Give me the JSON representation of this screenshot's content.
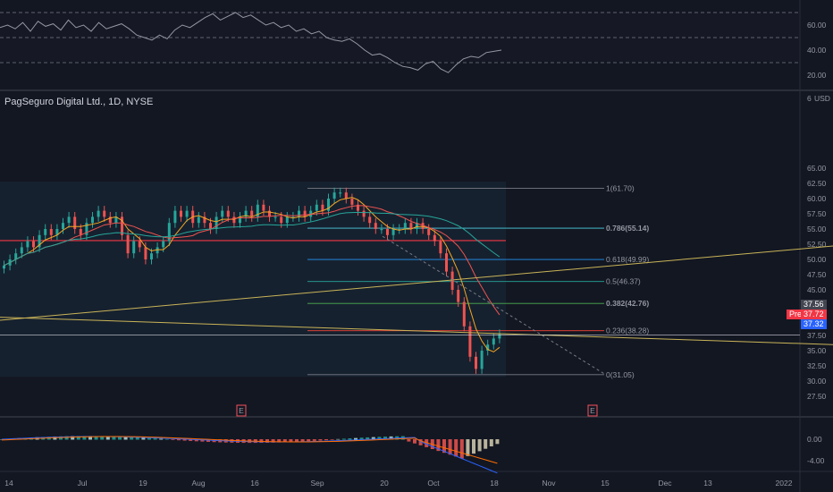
{
  "title": "PagSeguro Digital Ltd., 1D, NYSE",
  "currency": "USD",
  "rsi": {
    "ticks": [
      "60.00",
      "40.00",
      "20.00"
    ]
  },
  "price_axis": {
    "top_partial": "6",
    "ticks": [
      "65.00",
      "62.50",
      "60.00",
      "57.50",
      "55.00",
      "52.50",
      "50.00",
      "47.50",
      "45.00",
      "42.50",
      "40.00",
      "37.50",
      "35.00",
      "32.50",
      "30.00",
      "27.50"
    ]
  },
  "macd": {
    "ticks": [
      "0.00",
      "-4.00"
    ]
  },
  "x_axis": [
    "14",
    "Jul",
    "19",
    "Aug",
    "16",
    "Sep",
    "20",
    "Oct",
    "18",
    "Nov",
    "15",
    "Dec",
    "13",
    "2022"
  ],
  "fib_levels": [
    {
      "label": "1(61.70)",
      "color": "#787b86",
      "bold": false
    },
    {
      "label": "0.786(55.14)",
      "color": "#4dd0e1",
      "bold": true
    },
    {
      "label": "0.618(49.99)",
      "color": "#2196f3",
      "bold": false
    },
    {
      "label": "0.5(46.37)",
      "color": "#26a69a",
      "bold": false
    },
    {
      "label": "0.382(42.76)",
      "color": "#4caf50",
      "bold": true
    },
    {
      "label": "0.236(38.28)",
      "color": "#f44336",
      "bold": false
    },
    {
      "label": "0(31.05)",
      "color": "#787b86",
      "bold": false
    }
  ],
  "price_badges": {
    "badge1": "37.56",
    "pre_label": "Pre",
    "badge2": "37.72",
    "badge3": "37.32"
  },
  "events": [
    "E",
    "E"
  ],
  "colors": {
    "up": "#26a69a",
    "down": "#ef5350",
    "background": "#131722",
    "trendline": "#c9b458",
    "hline": "#f23645"
  }
}
